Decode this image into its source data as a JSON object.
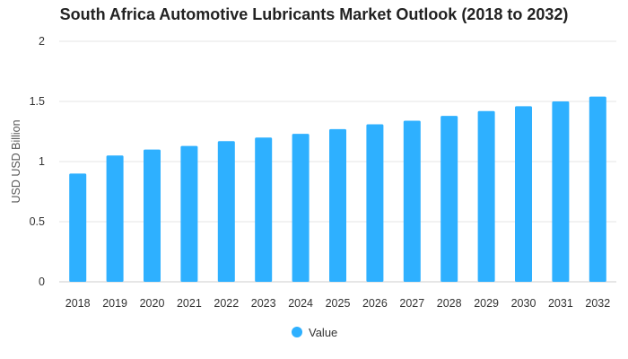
{
  "chart_data": {
    "type": "bar",
    "title": "South Africa Automotive Lubricants Market Outlook (2018 to 2032)",
    "xlabel": "",
    "ylabel": "USD USD Billion",
    "categories": [
      "2018",
      "2019",
      "2020",
      "2021",
      "2022",
      "2023",
      "2024",
      "2025",
      "2026",
      "2027",
      "2028",
      "2029",
      "2030",
      "2031",
      "2032"
    ],
    "series": [
      {
        "name": "Value",
        "values": [
          0.9,
          1.05,
          1.1,
          1.13,
          1.17,
          1.2,
          1.23,
          1.27,
          1.31,
          1.34,
          1.38,
          1.42,
          1.46,
          1.5,
          1.54
        ]
      }
    ],
    "ylim": [
      0,
      2
    ],
    "yticks": [
      "0",
      "0.5",
      "1",
      "1.5",
      "2"
    ],
    "grid": true,
    "legend": "bottom-center",
    "colors": {
      "bar": "#2eb0ff",
      "grid": "#e6e6e6",
      "axis": "#cccccc"
    }
  }
}
